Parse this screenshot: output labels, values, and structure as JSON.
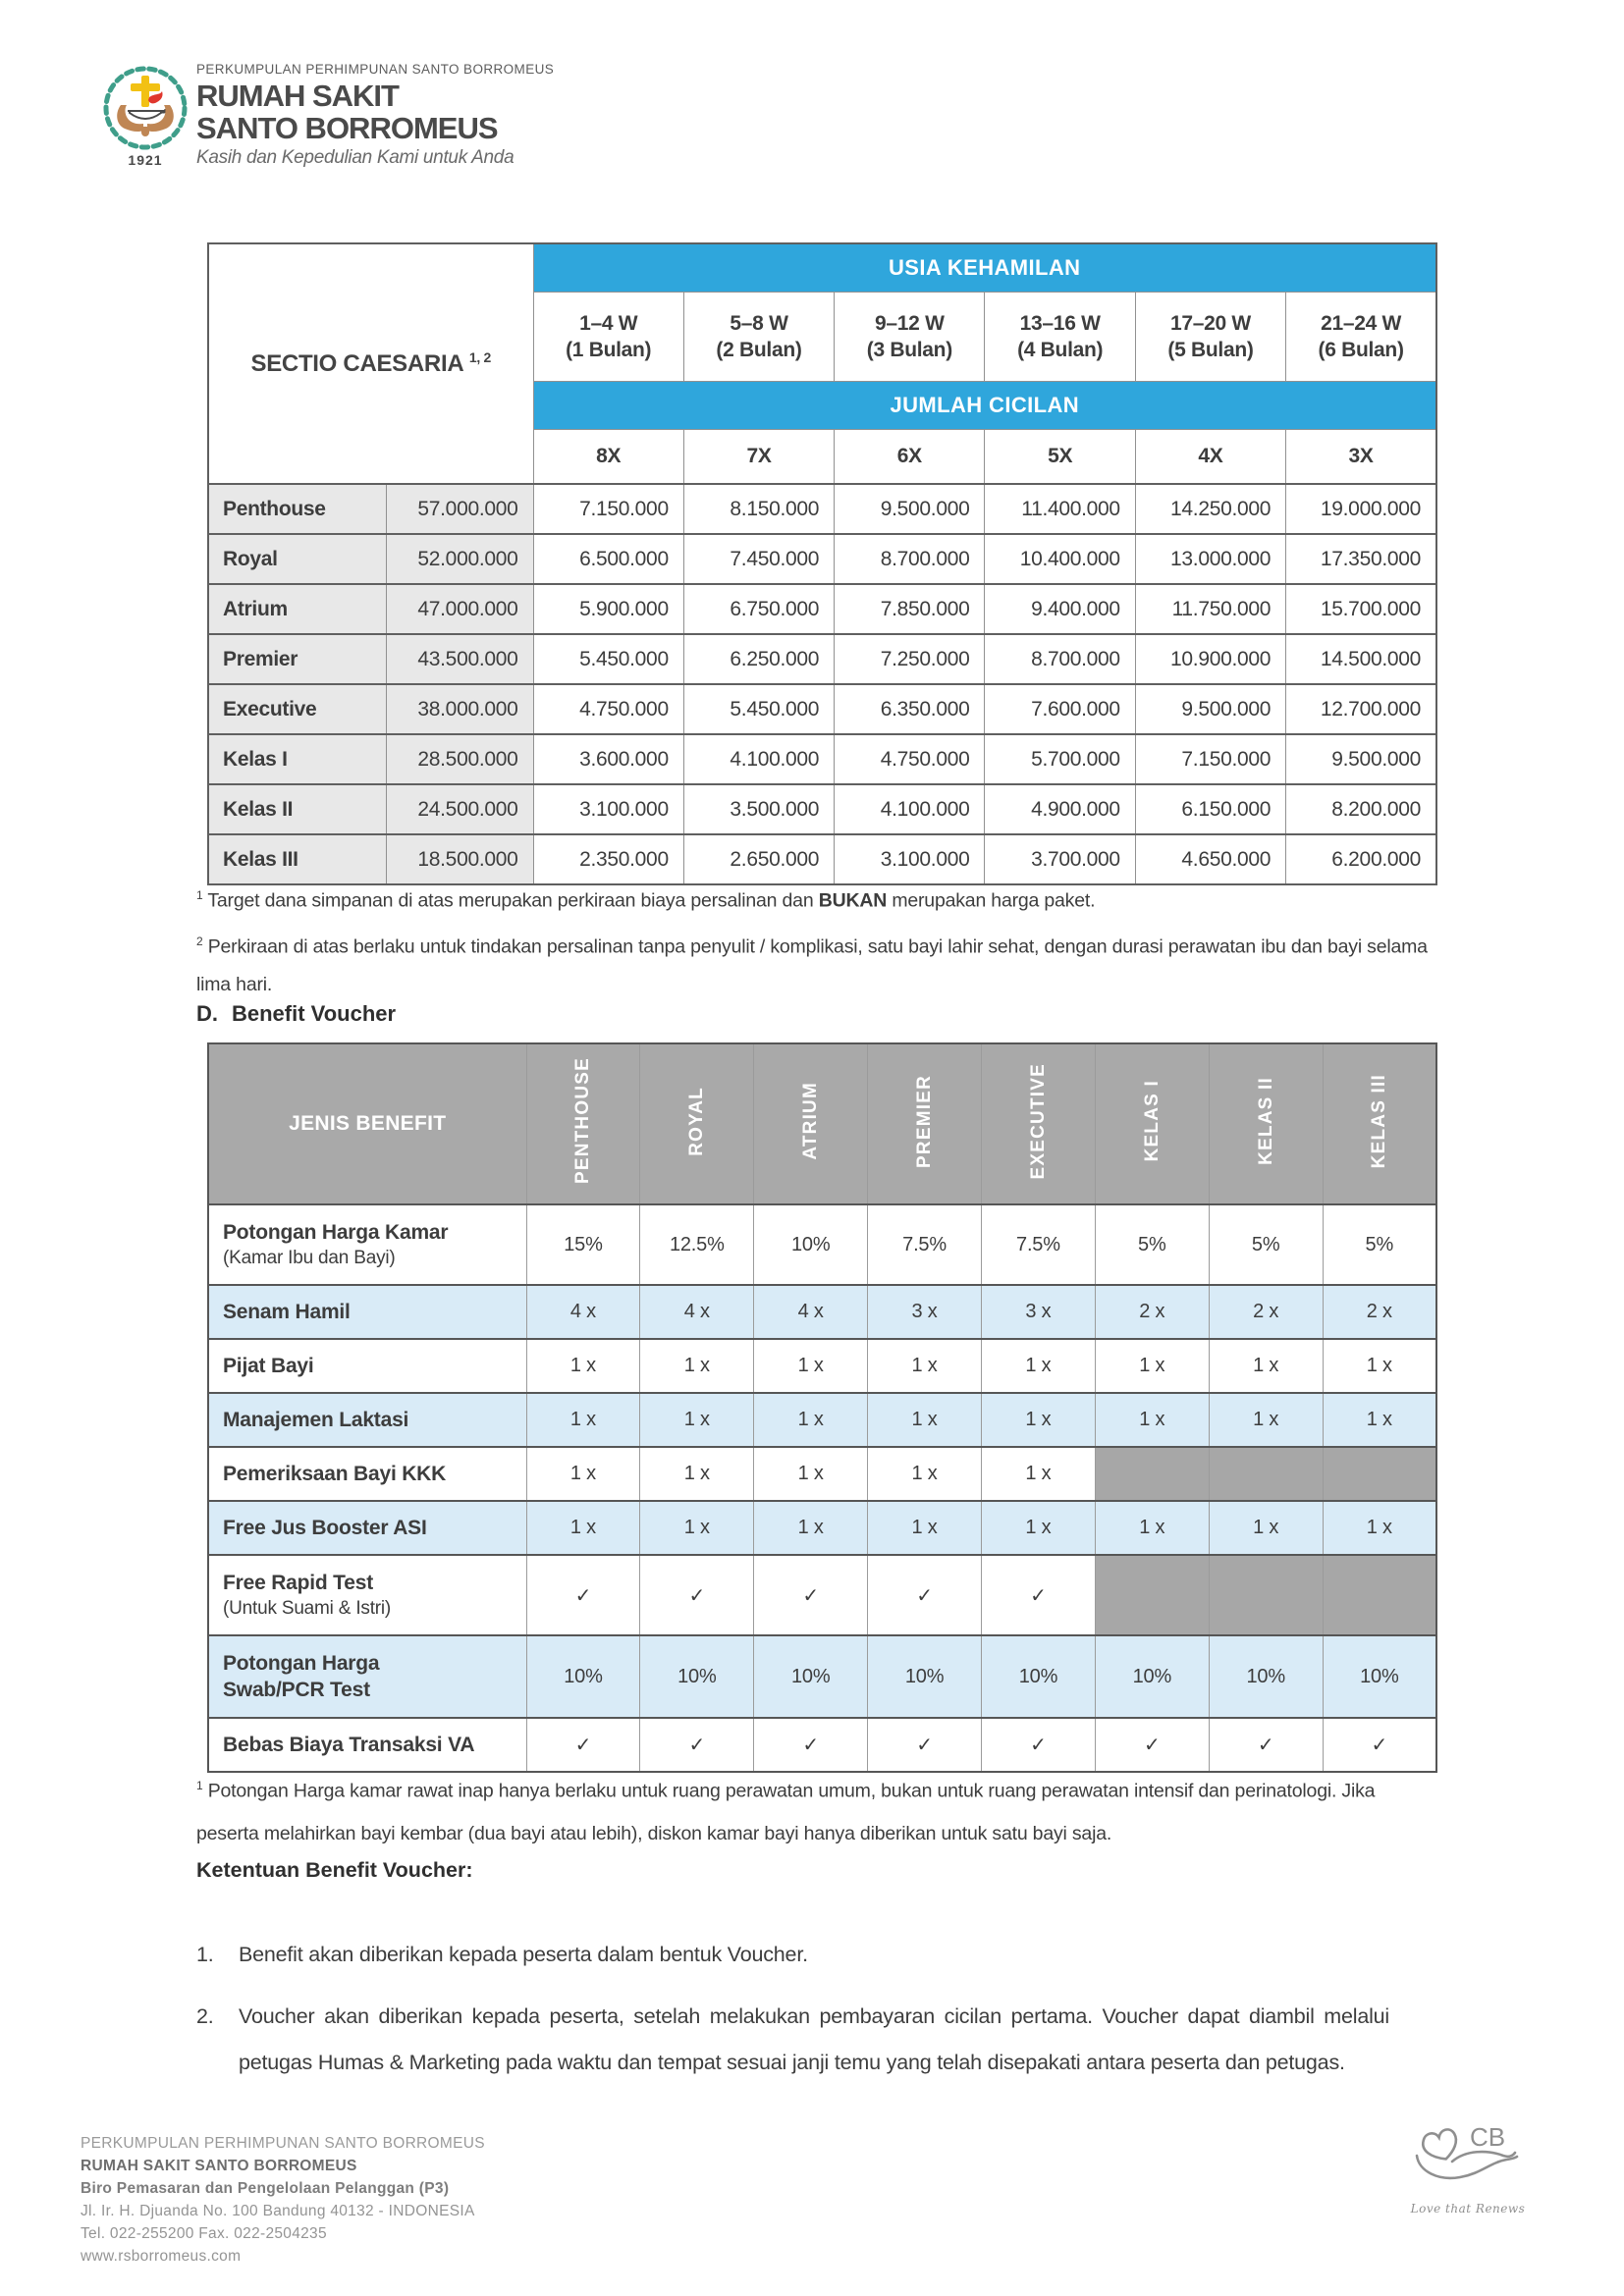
{
  "header": {
    "org_line": "PERKUMPULAN PERHIMPUNAN SANTO BORROMEUS",
    "title_line1": "RUMAH SAKIT",
    "title_line2": "SANTO BORROMEUS",
    "tagline": "Kasih dan Kepedulian Kami untuk Anda",
    "year": "1921"
  },
  "pricing_table": {
    "row_header_label": "SECTIO CAESARIA",
    "row_header_sup": "1, 2",
    "col_group1_label": "USIA KEHAMILAN",
    "col_group2_label": "JUMLAH CICILAN",
    "week_columns": [
      {
        "weeks": "1–4 W",
        "months": "(1 Bulan)"
      },
      {
        "weeks": "5–8 W",
        "months": "(2 Bulan)"
      },
      {
        "weeks": "9–12 W",
        "months": "(3 Bulan)"
      },
      {
        "weeks": "13–16 W",
        "months": "(4 Bulan)"
      },
      {
        "weeks": "17–20 W",
        "months": "(5 Bulan)"
      },
      {
        "weeks": "21–24 W",
        "months": "(6 Bulan)"
      }
    ],
    "installments": [
      "8X",
      "7X",
      "6X",
      "5X",
      "4X",
      "3X"
    ],
    "rows": [
      {
        "name": "Penthouse",
        "target": "57.000.000",
        "values": [
          "7.150.000",
          "8.150.000",
          "9.500.000",
          "11.400.000",
          "14.250.000",
          "19.000.000"
        ]
      },
      {
        "name": "Royal",
        "target": "52.000.000",
        "values": [
          "6.500.000",
          "7.450.000",
          "8.700.000",
          "10.400.000",
          "13.000.000",
          "17.350.000"
        ]
      },
      {
        "name": "Atrium",
        "target": "47.000.000",
        "values": [
          "5.900.000",
          "6.750.000",
          "7.850.000",
          "9.400.000",
          "11.750.000",
          "15.700.000"
        ]
      },
      {
        "name": "Premier",
        "target": "43.500.000",
        "values": [
          "5.450.000",
          "6.250.000",
          "7.250.000",
          "8.700.000",
          "10.900.000",
          "14.500.000"
        ]
      },
      {
        "name": "Executive",
        "target": "38.000.000",
        "values": [
          "4.750.000",
          "5.450.000",
          "6.350.000",
          "7.600.000",
          "9.500.000",
          "12.700.000"
        ]
      },
      {
        "name": "Kelas I",
        "target": "28.500.000",
        "values": [
          "3.600.000",
          "4.100.000",
          "4.750.000",
          "5.700.000",
          "7.150.000",
          "9.500.000"
        ]
      },
      {
        "name": "Kelas II",
        "target": "24.500.000",
        "values": [
          "3.100.000",
          "3.500.000",
          "4.100.000",
          "4.900.000",
          "6.150.000",
          "8.200.000"
        ]
      },
      {
        "name": "Kelas III",
        "target": "18.500.000",
        "values": [
          "2.350.000",
          "2.650.000",
          "3.100.000",
          "3.700.000",
          "4.650.000",
          "6.200.000"
        ]
      }
    ]
  },
  "pricing_footnotes": [
    {
      "sup": "1",
      "pre": "Target dana simpanan di atas merupakan perkiraan biaya persalinan dan ",
      "bold": "BUKAN",
      "post": " merupakan harga paket."
    },
    {
      "sup": "2",
      "text": "Perkiraan di atas berlaku untuk tindakan persalinan tanpa penyulit / komplikasi, satu bayi lahir sehat, dengan durasi perawatan ibu dan bayi selama lima hari."
    }
  ],
  "benefit_section": {
    "heading_letter": "D.",
    "heading": "Benefit Voucher",
    "table": {
      "corner_label": "JENIS BENEFIT",
      "columns": [
        "PENTHOUSE",
        "ROYAL",
        "ATRIUM",
        "PREMIER",
        "EXECUTIVE",
        "KELAS I",
        "KELAS II",
        "KELAS III"
      ],
      "rows": [
        {
          "lines": [
            {
              "t": "Potongan Harga Kamar",
              "b": true
            },
            {
              "t": "(Kamar Ibu dan Bayi)",
              "b": false
            }
          ],
          "tint": false,
          "values": [
            "15%",
            "12.5%",
            "10%",
            "7.5%",
            "7.5%",
            "5%",
            "5%",
            "5%"
          ]
        },
        {
          "lines": [
            {
              "t": "Senam Hamil",
              "b": true
            }
          ],
          "tint": true,
          "values": [
            "4 x",
            "4 x",
            "4 x",
            "3 x",
            "3 x",
            "2 x",
            "2 x",
            "2 x"
          ]
        },
        {
          "lines": [
            {
              "t": "Pijat Bayi",
              "b": true
            }
          ],
          "tint": false,
          "values": [
            "1 x",
            "1 x",
            "1 x",
            "1 x",
            "1 x",
            "1 x",
            "1 x",
            "1 x"
          ]
        },
        {
          "lines": [
            {
              "t": "Manajemen Laktasi",
              "b": true
            }
          ],
          "tint": true,
          "values": [
            "1 x",
            "1 x",
            "1 x",
            "1 x",
            "1 x",
            "1 x",
            "1 x",
            "1 x"
          ]
        },
        {
          "lines": [
            {
              "t": "Pemeriksaan Bayi KKK",
              "b": true
            }
          ],
          "tint": false,
          "values": [
            "1 x",
            "1 x",
            "1 x",
            "1 x",
            "1 x",
            null,
            null,
            null
          ]
        },
        {
          "lines": [
            {
              "t": "Free Jus Booster ASI",
              "b": true
            }
          ],
          "tint": true,
          "values": [
            "1 x",
            "1 x",
            "1 x",
            "1 x",
            "1 x",
            "1 x",
            "1 x",
            "1 x"
          ]
        },
        {
          "lines": [
            {
              "t": "Free Rapid Test",
              "b": true
            },
            {
              "t": "(Untuk Suami & Istri)",
              "b": false
            }
          ],
          "tint": false,
          "values": [
            "✓",
            "✓",
            "✓",
            "✓",
            "✓",
            null,
            null,
            null
          ]
        },
        {
          "lines": [
            {
              "t": "Potongan Harga",
              "b": true
            },
            {
              "t": "Swab/PCR Test",
              "b": true
            }
          ],
          "tint": true,
          "values": [
            "10%",
            "10%",
            "10%",
            "10%",
            "10%",
            "10%",
            "10%",
            "10%"
          ]
        },
        {
          "lines": [
            {
              "t": "Bebas Biaya Transaksi VA",
              "b": true
            }
          ],
          "tint": false,
          "values": [
            "✓",
            "✓",
            "✓",
            "✓",
            "✓",
            "✓",
            "✓",
            "✓"
          ]
        }
      ]
    },
    "footnote": {
      "sup": "1",
      "text": "Potongan Harga kamar rawat inap hanya berlaku untuk ruang perawatan umum, bukan untuk ruang perawatan intensif dan perinatologi. Jika peserta melahirkan bayi kembar (dua bayi atau lebih), diskon kamar bayi hanya diberikan untuk satu bayi saja."
    }
  },
  "ketentuan": {
    "heading": "Ketentuan Benefit Voucher:",
    "items": [
      "Benefit akan diberikan kepada peserta dalam bentuk Voucher.",
      "Voucher akan diberikan kepada peserta, setelah melakukan pembayaran cicilan pertama. Voucher dapat diambil melalui petugas Humas & Marketing pada waktu dan tempat sesuai janji temu yang telah disepakati antara peserta dan petugas."
    ]
  },
  "footer": {
    "lines": [
      "PERKUMPULAN PERHIMPUNAN SANTO BORROMEUS",
      "RUMAH SAKIT SANTO BORROMEUS",
      "Biro Pemasaran dan Pengelolaan Pelanggan (P3)",
      "Jl. Ir. H. Djuanda No. 100 Bandung 40132 - INDONESIA",
      "Tel. 022-255200 Fax. 022-2504235",
      "www.rsborromeus.com"
    ],
    "cb_logo_text": "CB",
    "cb_logo_tagline": "Love that Renews"
  },
  "colors": {
    "accent_blue": "#2fa6dc",
    "header_gray": "#a9a9a9",
    "disabled_gray": "#a7a7a7",
    "row_light_blue": "#d9ebf7",
    "cell_light_gray": "#e8e8e8",
    "logo_teal": "#3f9e8a",
    "logo_yellow": "#f2c114",
    "logo_red": "#e0372e",
    "logo_tan": "#bf8654"
  }
}
